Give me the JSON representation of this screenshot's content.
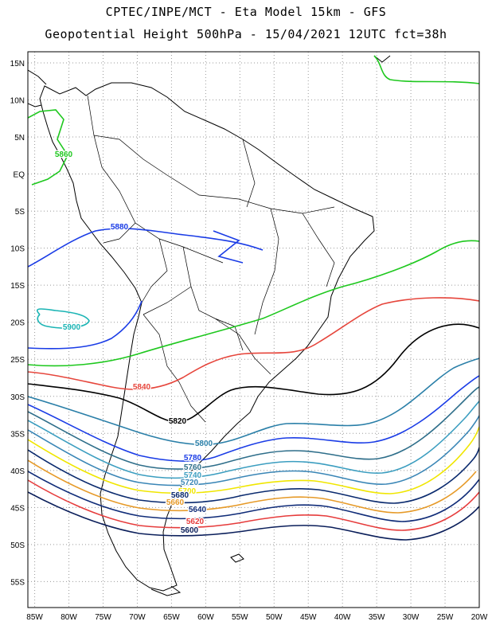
{
  "header": {
    "title_line1": "CPTEC/INPE/MCT -  Eta Model 15km - GFS",
    "title_line2": "Geopotential Height 500hPa - 15/04/2021 12UTC fct=38h"
  },
  "axes": {
    "lat_labels": [
      "15N",
      "10N",
      "5N",
      "EQ",
      "5S",
      "10S",
      "15S",
      "20S",
      "25S",
      "30S",
      "35S",
      "40S",
      "45S",
      "50S",
      "55S"
    ],
    "lon_labels": [
      "85W",
      "80W",
      "75W",
      "70W",
      "65W",
      "60W",
      "55W",
      "50W",
      "45W",
      "40W",
      "35W",
      "30W",
      "25W",
      "20W"
    ]
  },
  "contours": [
    {
      "value": "5900",
      "color": "#1ab4b4"
    },
    {
      "value": "5880",
      "color": "#1a3ce6"
    },
    {
      "value": "5860",
      "color": "#1ec81e"
    },
    {
      "value": "5840",
      "color": "#e6463c"
    },
    {
      "value": "5820",
      "color": "#000000"
    },
    {
      "value": "5800",
      "color": "#2a7fa8"
    },
    {
      "value": "5780",
      "color": "#1a3ce6"
    },
    {
      "value": "5760",
      "color": "#2e6e8a"
    },
    {
      "value": "5740",
      "color": "#3c9ec0"
    },
    {
      "value": "5720",
      "color": "#3a86b6"
    },
    {
      "value": "5700",
      "color": "#f0e600"
    },
    {
      "value": "5680",
      "color": "#0a2a6e"
    },
    {
      "value": "5660",
      "color": "#e69a28"
    },
    {
      "value": "5640",
      "color": "#102c78"
    },
    {
      "value": "5620",
      "color": "#e63c3c"
    },
    {
      "value": "5600",
      "color": "#0a1e5a"
    }
  ]
}
